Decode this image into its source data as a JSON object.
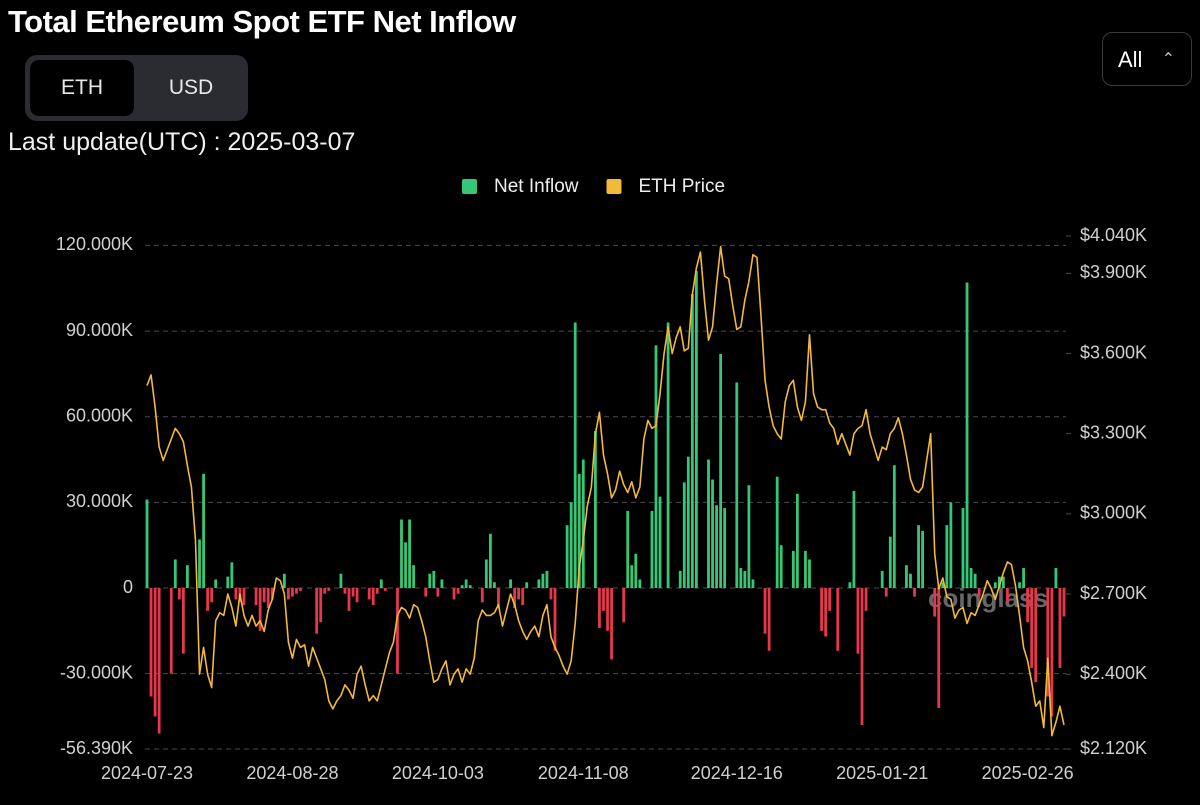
{
  "header": {
    "title": "Total Ethereum Spot ETF Net Inflow",
    "toggle": [
      "ETH",
      "USD"
    ],
    "range": "All",
    "last_update": "Last update(UTC) : 2025-03-07"
  },
  "watermark": "coinglass",
  "chart_data": {
    "type": "bar-line",
    "categories": [
      "2024-07-23",
      null,
      null,
      null,
      null,
      null,
      null,
      null,
      null,
      null,
      null,
      null,
      null,
      null,
      null,
      null,
      null,
      null,
      null,
      null,
      null,
      null,
      null,
      null,
      null,
      null,
      null,
      null,
      null,
      null,
      null,
      null,
      null,
      null,
      null,
      null,
      "2024-08-28",
      null,
      null,
      null,
      null,
      null,
      null,
      null,
      null,
      null,
      null,
      null,
      null,
      null,
      null,
      null,
      null,
      null,
      null,
      null,
      null,
      null,
      null,
      null,
      null,
      null,
      null,
      null,
      null,
      null,
      null,
      null,
      null,
      null,
      null,
      null,
      "2024-10-03",
      null,
      null,
      null,
      null,
      null,
      null,
      null,
      null,
      null,
      null,
      null,
      null,
      null,
      null,
      null,
      null,
      null,
      null,
      null,
      null,
      null,
      null,
      null,
      null,
      null,
      null,
      null,
      null,
      null,
      null,
      null,
      null,
      null,
      null,
      null,
      "2024-11-08",
      null,
      null,
      null,
      null,
      null,
      null,
      null,
      null,
      null,
      null,
      null,
      null,
      null,
      null,
      null,
      null,
      null,
      null,
      null,
      null,
      null,
      null,
      null,
      null,
      null,
      null,
      null,
      null,
      null,
      null,
      null,
      null,
      null,
      null,
      null,
      null,
      null,
      "2024-12-16",
      null,
      null,
      null,
      null,
      null,
      null,
      null,
      null,
      null,
      null,
      null,
      null,
      null,
      null,
      null,
      null,
      null,
      null,
      null,
      null,
      null,
      null,
      null,
      null,
      null,
      null,
      null,
      null,
      null,
      null,
      null,
      null,
      null,
      null,
      null,
      "2025-01-21",
      null,
      null,
      null,
      null,
      null,
      null,
      null,
      null,
      null,
      null,
      null,
      null,
      null,
      null,
      null,
      null,
      null,
      null,
      null,
      null,
      null,
      null,
      null,
      null,
      null,
      null,
      null,
      null,
      null,
      null,
      null,
      null,
      null,
      null,
      null,
      "2025-02-26",
      null,
      null,
      null,
      null,
      null,
      null,
      null,
      null,
      null
    ],
    "series": [
      {
        "name": "Net Inflow",
        "color": "#36c776",
        "negative_color": "#e5384c",
        "values": [
          31000,
          -38000,
          -45000,
          -51000,
          0,
          0,
          -30000,
          10000,
          -4000,
          -23000,
          8000,
          0,
          0,
          17000,
          40000,
          -8000,
          -5000,
          3000,
          0,
          0,
          4000,
          9000,
          -4000,
          -5000,
          -6000,
          0,
          0,
          -6000,
          -15000,
          -5000,
          -7000,
          -4000,
          0,
          0,
          5000,
          -4000,
          -3000,
          -2000,
          -1000,
          0,
          0,
          0,
          -16000,
          -12000,
          -2000,
          -1000,
          0,
          0,
          5000,
          -2000,
          -8000,
          -3000,
          -5000,
          0,
          0,
          -4000,
          -6000,
          -2000,
          3000,
          -1000,
          0,
          0,
          -30000,
          24000,
          16000,
          24000,
          8000,
          0,
          0,
          -3000,
          5000,
          6000,
          -3000,
          3000,
          0,
          0,
          -4000,
          -2000,
          1000,
          3000,
          1000,
          0,
          0,
          -5000,
          10000,
          19000,
          2000,
          -7000,
          0,
          0,
          3000,
          -7000,
          -4000,
          -6000,
          2000,
          0,
          0,
          3000,
          5000,
          6000,
          -4000,
          -22000,
          0,
          0,
          22000,
          30000,
          93000,
          40000,
          45000,
          0,
          0,
          55000,
          -14000,
          -8000,
          -15000,
          -25000,
          0,
          0,
          -12000,
          27000,
          8000,
          12000,
          3000,
          0,
          0,
          27000,
          85000,
          32000,
          0,
          93000,
          0,
          0,
          6000,
          37000,
          46000,
          103000,
          111000,
          0,
          0,
          45000,
          38000,
          29000,
          82000,
          28000,
          0,
          0,
          72000,
          7000,
          6000,
          36000,
          3000,
          0,
          0,
          -16000,
          -22000,
          0,
          39000,
          15000,
          0,
          0,
          13000,
          33000,
          0,
          13000,
          10000,
          0,
          0,
          -15000,
          -17000,
          -8000,
          0,
          -22000,
          0,
          0,
          2000,
          34000,
          -23000,
          -48000,
          -8000,
          0,
          0,
          0,
          6000,
          -3000,
          18000,
          43000,
          0,
          0,
          8000,
          5000,
          -3000,
          22000,
          20000,
          0,
          0,
          -10000,
          -42000,
          2000,
          22000,
          30000,
          0,
          0,
          28000,
          107000,
          7000,
          5000,
          -3000,
          0,
          0,
          0,
          2000,
          4000,
          4000,
          -5000,
          0,
          0,
          2000,
          7000,
          -12000,
          -28000,
          -33000,
          0,
          0,
          -38000,
          -45000,
          7000,
          -28000,
          -10000
        ]
      },
      {
        "name": "ETH Price",
        "color": "#f2b93b",
        "axis": "y2",
        "values": [
          3480,
          3520,
          3400,
          3250,
          3200,
          3240,
          3280,
          3320,
          3300,
          3270,
          3180,
          3100,
          2900,
          2400,
          2500,
          2400,
          2350,
          2600,
          2630,
          2620,
          2700,
          2650,
          2580,
          2700,
          2620,
          2580,
          2620,
          2580,
          2600,
          2560,
          2640,
          2680,
          2760,
          2750,
          2700,
          2520,
          2460,
          2530,
          2500,
          2510,
          2430,
          2500,
          2460,
          2420,
          2380,
          2300,
          2270,
          2300,
          2320,
          2360,
          2340,
          2310,
          2400,
          2430,
          2360,
          2300,
          2320,
          2300,
          2360,
          2420,
          2480,
          2520,
          2620,
          2650,
          2640,
          2610,
          2660,
          2650,
          2600,
          2540,
          2450,
          2370,
          2380,
          2420,
          2450,
          2360,
          2400,
          2420,
          2370,
          2420,
          2400,
          2460,
          2600,
          2640,
          2620,
          2620,
          2630,
          2660,
          2580,
          2640,
          2700,
          2660,
          2600,
          2560,
          2530,
          2560,
          2580,
          2540,
          2620,
          2660,
          2540,
          2500,
          2470,
          2430,
          2400,
          2450,
          2590,
          2800,
          2900,
          3030,
          3100,
          3300,
          3380,
          3220,
          3150,
          3060,
          3090,
          3160,
          3110,
          3080,
          3120,
          3060,
          3100,
          3280,
          3350,
          3320,
          3330,
          3450,
          3600,
          3700,
          3600,
          3660,
          3700,
          3610,
          3620,
          3820,
          3920,
          3980,
          3800,
          3650,
          3700,
          3860,
          4000,
          3890,
          3880,
          3780,
          3690,
          3700,
          3800,
          3870,
          3970,
          3960,
          3740,
          3500,
          3400,
          3330,
          3300,
          3280,
          3420,
          3480,
          3500,
          3400,
          3350,
          3420,
          3670,
          3450,
          3400,
          3390,
          3390,
          3340,
          3320,
          3260,
          3300,
          3260,
          3220,
          3300,
          3320,
          3330,
          3390,
          3300,
          3250,
          3200,
          3250,
          3240,
          3300,
          3320,
          3360,
          3300,
          3220,
          3130,
          3090,
          3080,
          3100,
          3200,
          3300,
          2850,
          2720,
          2760,
          2690,
          2680,
          2610,
          2640,
          2650,
          2590,
          2630,
          2620,
          2660,
          2700,
          2750,
          2720,
          2680,
          2730,
          2780,
          2820,
          2810,
          2730,
          2620,
          2500,
          2450,
          2370,
          2280,
          2300,
          2200,
          2460,
          2170,
          2220,
          2280,
          2210
        ]
      }
    ],
    "ylim": [
      -56390,
      123300
    ],
    "yticks": [
      {
        "value": -56390,
        "label": "-56.390K"
      },
      {
        "value": -30000,
        "label": "-30.000K"
      },
      0,
      {
        "value": 30000,
        "label": "30.000K"
      },
      {
        "value": 60000,
        "label": "60.000K"
      },
      {
        "value": 90000,
        "label": "90.000K"
      },
      {
        "value": 120000,
        "label": "120.000K"
      }
    ],
    "y2lim": [
      2120,
      4040
    ],
    "y2ticks": [
      {
        "value": 2120,
        "label": "$2.120K"
      },
      {
        "value": 2400,
        "label": "$2.400K"
      },
      {
        "value": 2700,
        "label": "$2.700K"
      },
      {
        "value": 3000,
        "label": "$3.000K"
      },
      {
        "value": 3300,
        "label": "$3.300K"
      },
      {
        "value": 3600,
        "label": "$3.600K"
      },
      {
        "value": 3900,
        "label": "$3.900K"
      },
      {
        "value": 4040,
        "label": "$4.040K"
      }
    ],
    "grid": true
  }
}
